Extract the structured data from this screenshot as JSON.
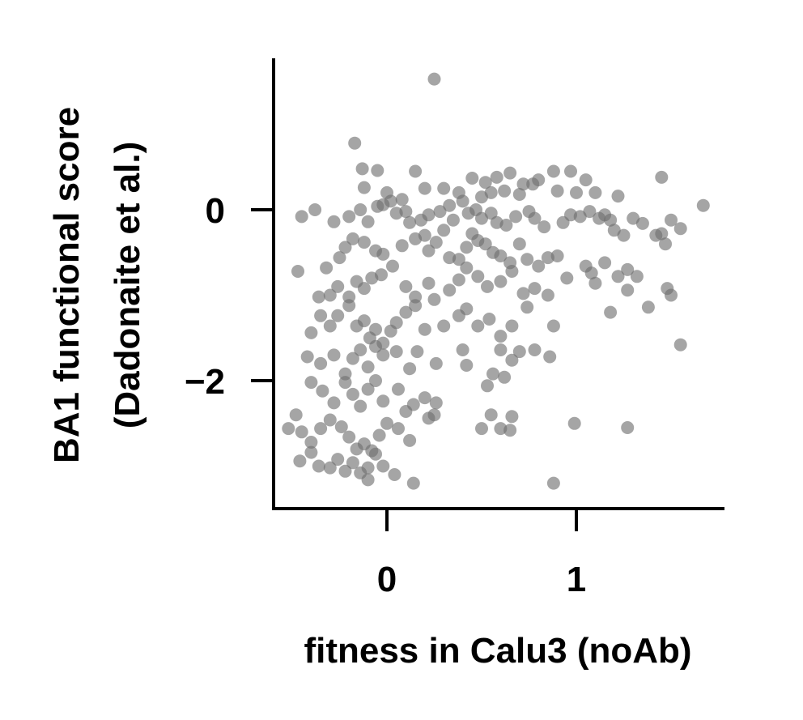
{
  "chart_data": {
    "type": "scatter",
    "title": "",
    "xlabel": "fitness in Calu3 (noAb)",
    "ylabel_lines": [
      "BA1 functional score",
      "(Dadonaite et al.)"
    ],
    "xlim": [
      -0.6,
      1.8
    ],
    "ylim": [
      -3.5,
      1.75
    ],
    "xticks": [
      0,
      1
    ],
    "yticks": [
      0,
      -2
    ],
    "xtick_labels": [
      "0",
      "1"
    ],
    "ytick_labels": [
      "0",
      "−2"
    ],
    "grid": false,
    "legend": "none",
    "color": "#6e6e6e",
    "points": [
      [
        0.25,
        1.53
      ],
      [
        -0.17,
        0.78
      ],
      [
        -0.13,
        0.48
      ],
      [
        -0.05,
        0.46
      ],
      [
        0.15,
        0.45
      ],
      [
        0.45,
        0.37
      ],
      [
        0.52,
        0.32
      ],
      [
        0.58,
        0.38
      ],
      [
        0.65,
        0.43
      ],
      [
        0.72,
        0.3
      ],
      [
        0.8,
        0.35
      ],
      [
        0.88,
        0.45
      ],
      [
        0.97,
        0.45
      ],
      [
        1.05,
        0.35
      ],
      [
        1.45,
        0.38
      ],
      [
        1.67,
        0.05
      ],
      [
        0.2,
        0.25
      ],
      [
        0.3,
        0.25
      ],
      [
        -0.12,
        0.26
      ],
      [
        0.0,
        0.2
      ],
      [
        0.08,
        0.12
      ],
      [
        0.38,
        0.2
      ],
      [
        0.5,
        0.15
      ],
      [
        0.55,
        0.2
      ],
      [
        0.62,
        0.22
      ],
      [
        0.7,
        0.18
      ],
      [
        0.77,
        0.3
      ],
      [
        0.9,
        0.22
      ],
      [
        1.0,
        0.2
      ],
      [
        1.1,
        0.2
      ],
      [
        1.22,
        0.16
      ],
      [
        -0.45,
        -0.08
      ],
      [
        -0.38,
        0.0
      ],
      [
        -0.28,
        -0.14
      ],
      [
        -0.2,
        -0.08
      ],
      [
        -0.14,
        0.0
      ],
      [
        -0.1,
        -0.14
      ],
      [
        -0.05,
        0.04
      ],
      [
        -0.02,
        0.06
      ],
      [
        0.02,
        0.1
      ],
      [
        0.05,
        -0.04
      ],
      [
        0.1,
        -0.02
      ],
      [
        0.12,
        -0.15
      ],
      [
        0.18,
        -0.12
      ],
      [
        0.22,
        -0.06
      ],
      [
        0.28,
        -0.02
      ],
      [
        0.33,
        0.05
      ],
      [
        0.35,
        -0.12
      ],
      [
        0.4,
        0.1
      ],
      [
        0.43,
        -0.04
      ],
      [
        0.47,
        0.0
      ],
      [
        0.5,
        -0.1
      ],
      [
        0.55,
        -0.04
      ],
      [
        0.58,
        -0.15
      ],
      [
        0.63,
        -0.18
      ],
      [
        0.68,
        -0.08
      ],
      [
        0.75,
        -0.02
      ],
      [
        0.78,
        -0.1
      ],
      [
        0.83,
        -0.2
      ],
      [
        0.93,
        -0.15
      ],
      [
        0.97,
        -0.06
      ],
      [
        1.02,
        -0.08
      ],
      [
        1.07,
        -0.02
      ],
      [
        1.12,
        -0.1
      ],
      [
        1.15,
        -0.06
      ],
      [
        1.18,
        -0.12
      ],
      [
        1.2,
        -0.24
      ],
      [
        1.25,
        -0.3
      ],
      [
        1.3,
        -0.1
      ],
      [
        1.35,
        -0.16
      ],
      [
        1.45,
        -0.28
      ],
      [
        1.5,
        -0.12
      ],
      [
        1.55,
        -0.22
      ],
      [
        1.47,
        -0.4
      ],
      [
        -0.47,
        -0.72
      ],
      [
        -0.32,
        -0.68
      ],
      [
        -0.25,
        -0.56
      ],
      [
        -0.22,
        -0.44
      ],
      [
        -0.18,
        -0.34
      ],
      [
        -0.12,
        -0.38
      ],
      [
        -0.06,
        -0.48
      ],
      [
        -0.02,
        -0.52
      ],
      [
        0.03,
        -0.66
      ],
      [
        0.08,
        -0.42
      ],
      [
        0.15,
        -0.34
      ],
      [
        0.2,
        -0.3
      ],
      [
        0.22,
        -0.48
      ],
      [
        0.26,
        -0.38
      ],
      [
        0.3,
        -0.24
      ],
      [
        0.33,
        -0.56
      ],
      [
        0.38,
        -0.58
      ],
      [
        0.42,
        -0.44
      ],
      [
        0.45,
        -0.28
      ],
      [
        0.48,
        -0.36
      ],
      [
        0.52,
        -0.4
      ],
      [
        0.56,
        -0.5
      ],
      [
        0.6,
        -0.54
      ],
      [
        0.65,
        -0.62
      ],
      [
        0.7,
        -0.4
      ],
      [
        0.74,
        -0.58
      ],
      [
        0.8,
        -0.66
      ],
      [
        0.85,
        -0.56
      ],
      [
        0.9,
        -0.54
      ],
      [
        1.05,
        -0.66
      ],
      [
        1.08,
        -0.74
      ],
      [
        1.15,
        -0.62
      ],
      [
        1.22,
        -0.78
      ],
      [
        1.27,
        -0.7
      ],
      [
        1.32,
        -0.78
      ],
      [
        -0.36,
        -1.02
      ],
      [
        -0.3,
        -1.0
      ],
      [
        -0.26,
        -0.9
      ],
      [
        -0.2,
        -1.02
      ],
      [
        -0.16,
        -0.84
      ],
      [
        -0.12,
        -0.92
      ],
      [
        -0.08,
        -0.8
      ],
      [
        -0.03,
        -0.76
      ],
      [
        0.1,
        -0.9
      ],
      [
        0.15,
        -1.02
      ],
      [
        0.22,
        -0.86
      ],
      [
        0.25,
        -1.05
      ],
      [
        0.33,
        -0.94
      ],
      [
        0.38,
        -0.82
      ],
      [
        0.42,
        -0.68
      ],
      [
        0.48,
        -0.78
      ],
      [
        0.53,
        -0.9
      ],
      [
        0.6,
        -0.84
      ],
      [
        0.66,
        -0.72
      ],
      [
        0.72,
        -0.98
      ],
      [
        0.78,
        -0.92
      ],
      [
        0.85,
        -1.0
      ],
      [
        0.95,
        -0.8
      ],
      [
        1.1,
        -0.86
      ],
      [
        1.27,
        -0.94
      ],
      [
        1.38,
        -1.14
      ],
      [
        1.48,
        -0.92
      ],
      [
        1.5,
        -1.0
      ],
      [
        -0.4,
        -1.44
      ],
      [
        -0.35,
        -1.24
      ],
      [
        -0.3,
        -1.36
      ],
      [
        -0.26,
        -1.24
      ],
      [
        -0.2,
        -1.12
      ],
      [
        -0.16,
        -1.36
      ],
      [
        -0.12,
        -1.3
      ],
      [
        -0.09,
        -1.5
      ],
      [
        -0.06,
        -1.4
      ],
      [
        -0.02,
        -1.56
      ],
      [
        0.02,
        -1.42
      ],
      [
        0.05,
        -1.32
      ],
      [
        0.1,
        -1.2
      ],
      [
        0.15,
        -1.12
      ],
      [
        0.2,
        -1.4
      ],
      [
        0.3,
        -1.36
      ],
      [
        0.38,
        -1.24
      ],
      [
        0.42,
        -1.16
      ],
      [
        0.48,
        -1.36
      ],
      [
        0.54,
        -1.28
      ],
      [
        0.6,
        -1.48
      ],
      [
        0.66,
        -1.36
      ],
      [
        0.74,
        -1.14
      ],
      [
        0.88,
        -1.36
      ],
      [
        1.18,
        -1.2
      ],
      [
        1.55,
        -1.58
      ],
      [
        -0.42,
        -1.72
      ],
      [
        -0.35,
        -1.8
      ],
      [
        -0.28,
        -1.7
      ],
      [
        -0.22,
        -1.92
      ],
      [
        -0.18,
        -1.74
      ],
      [
        -0.14,
        -1.64
      ],
      [
        -0.1,
        -1.84
      ],
      [
        -0.06,
        -1.6
      ],
      [
        -0.02,
        -1.7
      ],
      [
        0.05,
        -1.66
      ],
      [
        0.12,
        -1.86
      ],
      [
        0.16,
        -1.66
      ],
      [
        0.26,
        -1.8
      ],
      [
        0.4,
        -1.64
      ],
      [
        0.42,
        -1.82
      ],
      [
        0.56,
        -1.92
      ],
      [
        0.6,
        -1.64
      ],
      [
        0.66,
        -1.76
      ],
      [
        0.7,
        -1.66
      ],
      [
        0.78,
        -1.64
      ],
      [
        0.86,
        -1.72
      ],
      [
        -0.4,
        -2.02
      ],
      [
        -0.34,
        -2.12
      ],
      [
        -0.28,
        -2.26
      ],
      [
        -0.22,
        -2.02
      ],
      [
        -0.18,
        -2.16
      ],
      [
        -0.14,
        -2.3
      ],
      [
        -0.1,
        -2.1
      ],
      [
        -0.06,
        -2.0
      ],
      [
        -0.02,
        -2.24
      ],
      [
        0.06,
        -2.1
      ],
      [
        0.1,
        -2.36
      ],
      [
        0.14,
        -2.28
      ],
      [
        0.2,
        -2.2
      ],
      [
        0.26,
        -2.26
      ],
      [
        0.22,
        -2.44
      ],
      [
        0.53,
        -2.06
      ],
      [
        0.62,
        -1.96
      ],
      [
        -0.48,
        -2.4
      ],
      [
        -0.45,
        -2.6
      ],
      [
        -0.4,
        -2.72
      ],
      [
        -0.35,
        -2.56
      ],
      [
        -0.3,
        -2.46
      ],
      [
        -0.24,
        -2.54
      ],
      [
        -0.2,
        -2.66
      ],
      [
        -0.16,
        -2.8
      ],
      [
        -0.12,
        -2.74
      ],
      [
        -0.08,
        -2.82
      ],
      [
        -0.04,
        -2.64
      ],
      [
        0.0,
        -2.5
      ],
      [
        0.06,
        -2.56
      ],
      [
        0.12,
        -2.7
      ],
      [
        0.25,
        -2.4
      ],
      [
        0.5,
        -2.56
      ],
      [
        0.55,
        -2.4
      ],
      [
        0.6,
        -2.56
      ],
      [
        0.66,
        -2.42
      ],
      [
        0.65,
        -2.58
      ],
      [
        0.99,
        -2.5
      ],
      [
        1.27,
        -2.55
      ],
      [
        -0.52,
        -2.56
      ],
      [
        -0.46,
        -2.94
      ],
      [
        -0.4,
        -2.84
      ],
      [
        -0.36,
        -3.0
      ],
      [
        -0.3,
        -3.02
      ],
      [
        -0.26,
        -2.92
      ],
      [
        -0.22,
        -3.06
      ],
      [
        -0.18,
        -2.96
      ],
      [
        -0.14,
        -3.08
      ],
      [
        -0.1,
        -3.02
      ],
      [
        -0.06,
        -2.86
      ],
      [
        -0.02,
        -3.0
      ],
      [
        0.04,
        -3.1
      ],
      [
        0.14,
        -3.2
      ],
      [
        -0.1,
        -3.16
      ],
      [
        0.88,
        -3.2
      ],
      [
        1.42,
        -0.3
      ]
    ]
  }
}
